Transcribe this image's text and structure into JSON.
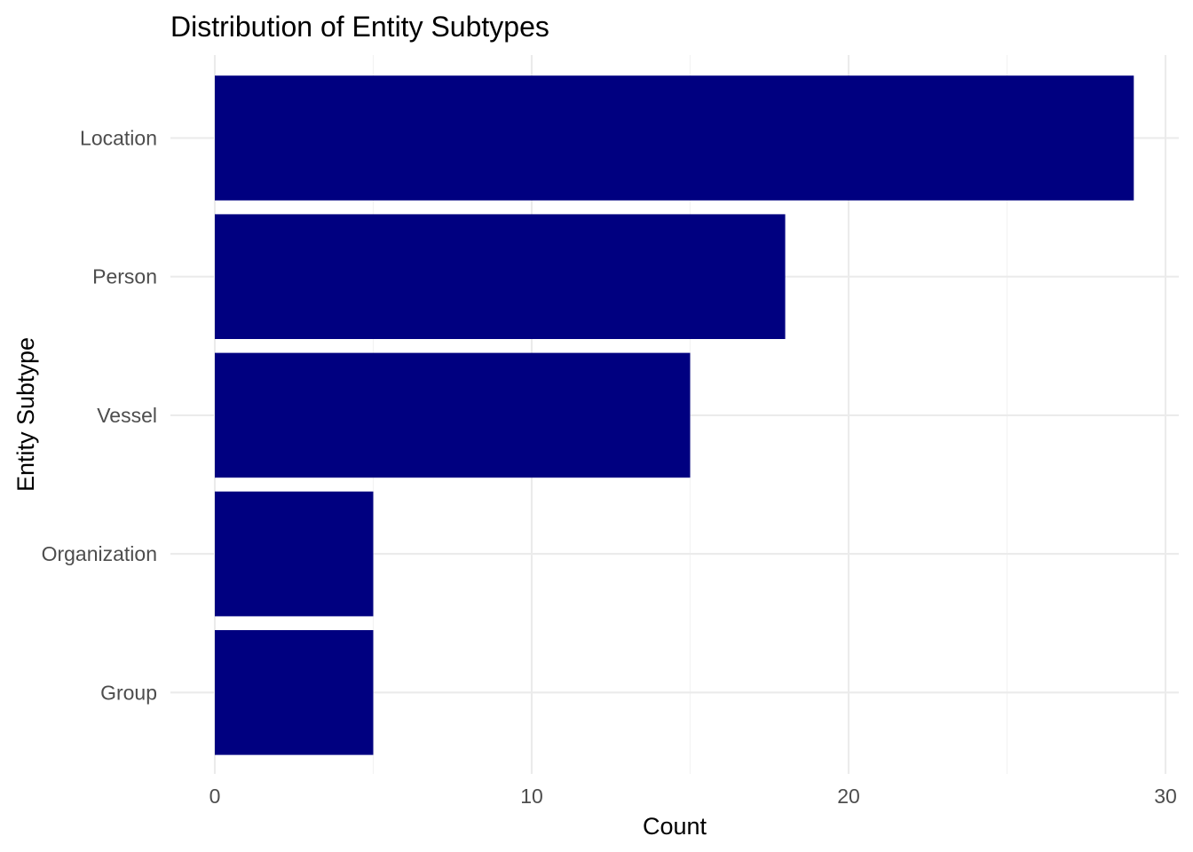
{
  "chart_data": {
    "type": "bar",
    "orientation": "horizontal",
    "title": "Distribution of Entity Subtypes",
    "xlabel": "Count",
    "ylabel": "Entity Subtype",
    "categories": [
      "Location",
      "Person",
      "Vessel",
      "Organization",
      "Group"
    ],
    "values": [
      29,
      18,
      15,
      5,
      5
    ],
    "xlim": [
      0,
      30
    ],
    "x_ticks": [
      0,
      10,
      20,
      30
    ],
    "x_tick_labels": [
      "0",
      "10",
      "20",
      "30"
    ],
    "grid": true,
    "legend": "none",
    "bar_color": "#000080"
  }
}
